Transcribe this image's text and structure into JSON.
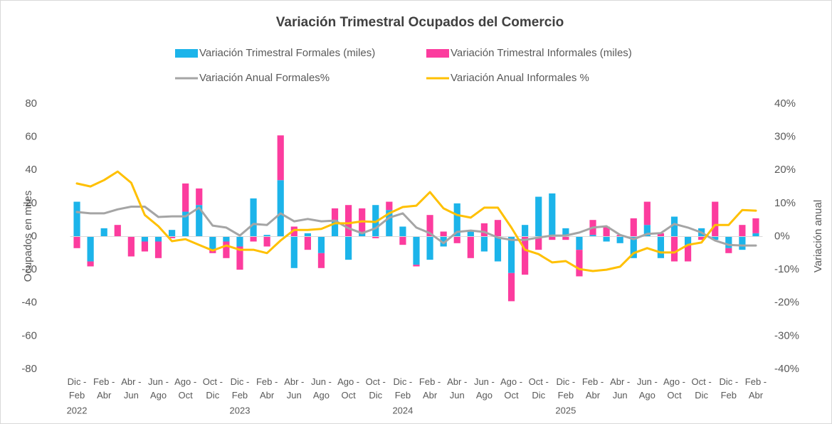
{
  "chart_data": {
    "type": "combo",
    "title": "Variación Trimestral Ocupados del Comercio",
    "y_label": "Ocupados en miles",
    "y2_label": "Variación anual",
    "categories": [
      "Dic - Feb",
      null,
      "Feb - Abr",
      null,
      "Abr - Jun",
      null,
      "Jun - Ago",
      null,
      "Ago - Oct",
      null,
      "Oct - Dic",
      null,
      "Dic - Feb",
      null,
      "Feb - Abr",
      null,
      "Abr - Jun",
      null,
      "Jun - Ago",
      null,
      "Ago - Oct",
      null,
      "Oct - Dic",
      null,
      "Dic - Feb",
      null,
      "Feb - Abr",
      null,
      "Abr - Jun",
      null,
      "Jun - Ago",
      null,
      "Ago - Oct",
      null,
      "Oct - Dic",
      null,
      "Dic - Feb",
      null,
      "Feb - Abr",
      null,
      "Abr - Jun",
      null,
      "Jun - Ago",
      null,
      "Ago - Oct",
      null,
      "Oct - Dic",
      null,
      "Dic - Feb",
      null,
      "Feb - Abr"
    ],
    "years": [
      "2022",
      null,
      null,
      null,
      null,
      null,
      null,
      null,
      null,
      null,
      null,
      null,
      "2023",
      null,
      null,
      null,
      null,
      null,
      null,
      null,
      null,
      null,
      null,
      null,
      "2024",
      null,
      null,
      null,
      null,
      null,
      null,
      null,
      null,
      null,
      null,
      null,
      "2025",
      null,
      null,
      null,
      null,
      null,
      null,
      null,
      null,
      null,
      null,
      null,
      null,
      null,
      null
    ],
    "series": [
      {
        "name": "Variación Trimestral Formales (miles)",
        "type": "bar",
        "color": "#1cb4ea",
        "values": [
          21,
          -15,
          5,
          0,
          0,
          -3,
          -3,
          4,
          15,
          19,
          -8,
          -3,
          -6,
          23,
          1,
          34,
          -19,
          2,
          -10,
          10,
          -14,
          2,
          19,
          16,
          6,
          -17,
          -14,
          -6,
          20,
          4,
          -9,
          -15,
          -22,
          7,
          24,
          26,
          5,
          -8,
          1,
          -3,
          -4,
          -13,
          7,
          -13,
          12,
          -5,
          5,
          -2,
          -7,
          -8,
          2
        ]
      },
      {
        "name": "Variación Trimestral Informales (miles)",
        "type": "bar",
        "color": "#fc3c9e",
        "values": [
          -7,
          -3,
          0,
          7,
          -12,
          -6,
          -10,
          -1,
          17,
          10,
          -2,
          -10,
          -14,
          -3,
          -6,
          27,
          6,
          -8,
          -9,
          7,
          19,
          15,
          -1,
          5,
          -5,
          -1,
          13,
          3,
          -4,
          -13,
          8,
          10,
          -17,
          -23,
          -8,
          -2,
          -2,
          -16,
          9,
          6,
          1,
          11,
          14,
          2,
          -15,
          -10,
          -2,
          21,
          -3,
          7,
          9
        ]
      },
      {
        "name": "Variación Anual Formales%",
        "type": "line",
        "axis": "y2",
        "color": "#a5a5a5",
        "values": [
          7.4,
          7,
          7,
          8.2,
          9,
          9,
          5.9,
          6.1,
          6.1,
          8.7,
          3.3,
          2.7,
          0.3,
          3.8,
          3.5,
          7,
          4.6,
          5.3,
          4.6,
          4.8,
          2.5,
          1,
          2.5,
          5.7,
          7,
          2.7,
          1,
          -2,
          1.4,
          1.8,
          1.4,
          -0.3,
          -1,
          -1,
          -0.3,
          0.3,
          0.3,
          1.2,
          2.7,
          3.1,
          0.5,
          -0.8,
          0.8,
          1,
          3.8,
          2.7,
          1.2,
          -1.2,
          -2.5,
          -2.7,
          -2.7
        ]
      },
      {
        "name": "Variación Anual Informales %",
        "type": "line",
        "axis": "y2",
        "color": "#ffc000",
        "values": [
          16,
          15.1,
          17,
          19.6,
          16.2,
          6.5,
          3.1,
          -1.4,
          -0.8,
          -2.5,
          -4.2,
          -2.7,
          -4,
          -4,
          -5,
          -1.2,
          2,
          2,
          2.3,
          4,
          4,
          4.6,
          4.4,
          7,
          8.9,
          9.3,
          13.4,
          8.5,
          6.5,
          5.7,
          8.7,
          8.7,
          2.7,
          -4,
          -5.3,
          -7.8,
          -7.4,
          -9.8,
          -10.4,
          -10,
          -9.1,
          -5,
          -3.5,
          -4.8,
          -4.8,
          -2.5,
          -1.8,
          3.5,
          3.5,
          8,
          7.8
        ]
      }
    ],
    "ylim": [
      -80,
      80
    ],
    "yticks": [
      -80,
      -60,
      -40,
      -20,
      0,
      20,
      40,
      60,
      80
    ],
    "y2lim": [
      -40,
      40
    ],
    "y2ticks": [
      {
        "value": -40,
        "label": "-40%"
      },
      {
        "value": -30,
        "label": "-30%"
      },
      {
        "value": -20,
        "label": "-20%"
      },
      {
        "value": -10,
        "label": "-10%"
      },
      {
        "value": 0,
        "label": "0%"
      },
      {
        "value": 10,
        "label": "10%"
      },
      {
        "value": 20,
        "label": "20%"
      },
      {
        "value": 30,
        "label": "30%"
      },
      {
        "value": 40,
        "label": "40%"
      }
    ],
    "grid": false
  }
}
